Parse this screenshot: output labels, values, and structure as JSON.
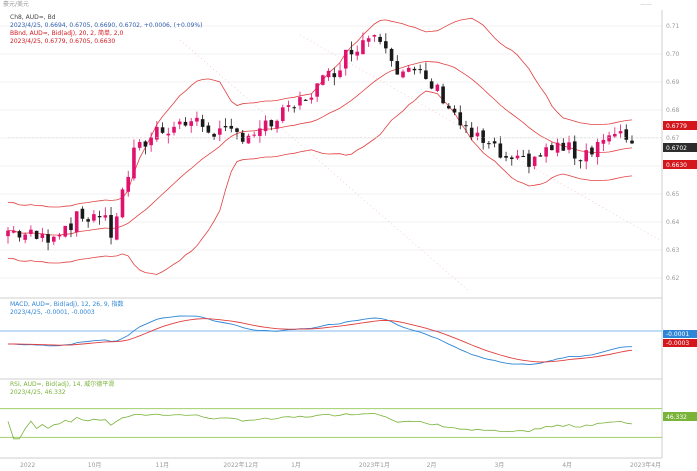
{
  "top_bar": {
    "left": "豪元/美元",
    "right": "——"
  },
  "price_panel": {
    "title": "Ch8, AUD=, Bd",
    "quote": "2023/4/25, 0.6694, 0.6705, 0.6690, 0.6702, +0.0006, (+0.09%)",
    "bb_label": "BBnd, AUD=, Bid(adj), 20, 2, 简单, 2,0",
    "bb_values": "2023/4/25, 0.6779, 0.6705, 0.6630",
    "badges": {
      "upper": "0.6779",
      "last": "0.6702",
      "lower": "0.6630"
    }
  },
  "macd_panel": {
    "title": "MACD, AUD=, Bid(adj), 12, 26, 9, 指数",
    "values": "2023/4/25, -0.0001, -0.0003",
    "badges": {
      "line1": "-0.0001",
      "line2": "-0.0003"
    }
  },
  "rsi_panel": {
    "title": "RSI, AUD=, Bid(adj), 14, 威尔德平滑",
    "values": "2023/4/25, 46.332",
    "badge": "46.332"
  },
  "chart_data": {
    "type": "candlestick",
    "series_count": 110,
    "price_ylim": [
      0.615,
      0.715
    ],
    "price_ticks": [
      "0.71",
      "0.70",
      "0.69",
      "0.68",
      "0.67",
      "0.66",
      "0.65",
      "0.64",
      "0.63",
      "0.62"
    ],
    "x_ticks": [
      "2022",
      "10月",
      "11月",
      "2022年12月",
      "1月",
      "2023年1月",
      "2月",
      "3月",
      "4月",
      "2023年4月"
    ],
    "colors": {
      "up": "#e0126e",
      "down": "#1a1a1a",
      "bb": "#e24040",
      "macd": "#2f86d6",
      "signal": "#e24040",
      "rsi": "#7ab33a",
      "badge_red": "#d3171d",
      "badge_dark": "#2d2d2d",
      "badge_blue": "#2f86d6",
      "badge_green": "#7ab33a"
    },
    "rsi_levels": [
      70,
      30
    ]
  }
}
